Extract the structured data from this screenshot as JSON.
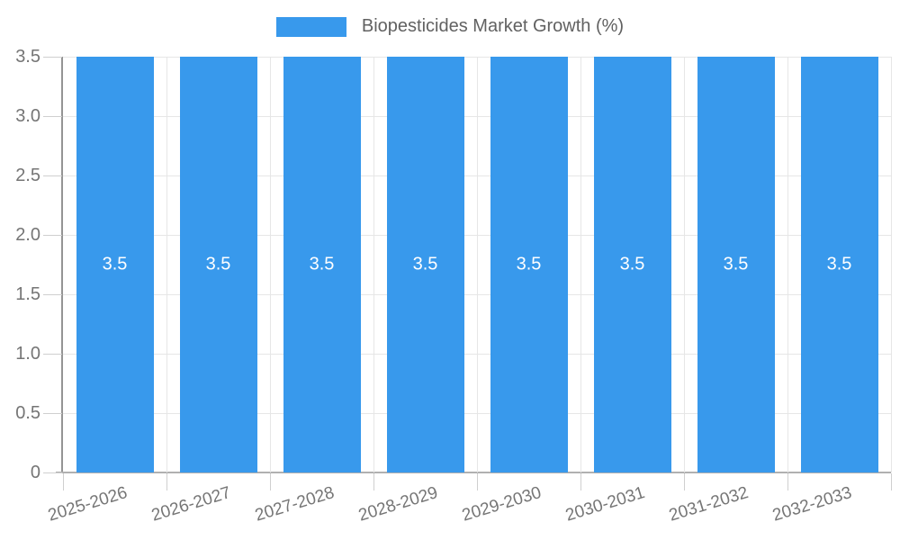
{
  "legend": {
    "label": "Biopesticides Market Growth (%)"
  },
  "chart_data": {
    "type": "bar",
    "title": "Biopesticides Market Growth (%)",
    "categories": [
      "2025-2026",
      "2026-2027",
      "2027-2028",
      "2028-2029",
      "2029-2030",
      "2030-2031",
      "2031-2032",
      "2032-2033"
    ],
    "values": [
      3.5,
      3.5,
      3.5,
      3.5,
      3.5,
      3.5,
      3.5,
      3.5
    ],
    "bar_labels": [
      "3.5",
      "3.5",
      "3.5",
      "3.5",
      "3.5",
      "3.5",
      "3.5",
      "3.5"
    ],
    "xlabel": "",
    "ylabel": "",
    "ylim": [
      0,
      3.5
    ],
    "y_tick_labels": [
      "0",
      "0.5",
      "1.0",
      "1.5",
      "2.0",
      "2.5",
      "3.0",
      "3.5"
    ],
    "grid": true,
    "legend_position": "top-center",
    "colors": {
      "bar": "#3899EC",
      "bar_label": "#FFFFFF",
      "grid": "#E6E6E6",
      "y_axis": "#949494",
      "x_axis": "#B0B0B0",
      "tick_mark": "#CFCFCF",
      "tick_text": "#757575",
      "legend_text": "#616161"
    }
  }
}
